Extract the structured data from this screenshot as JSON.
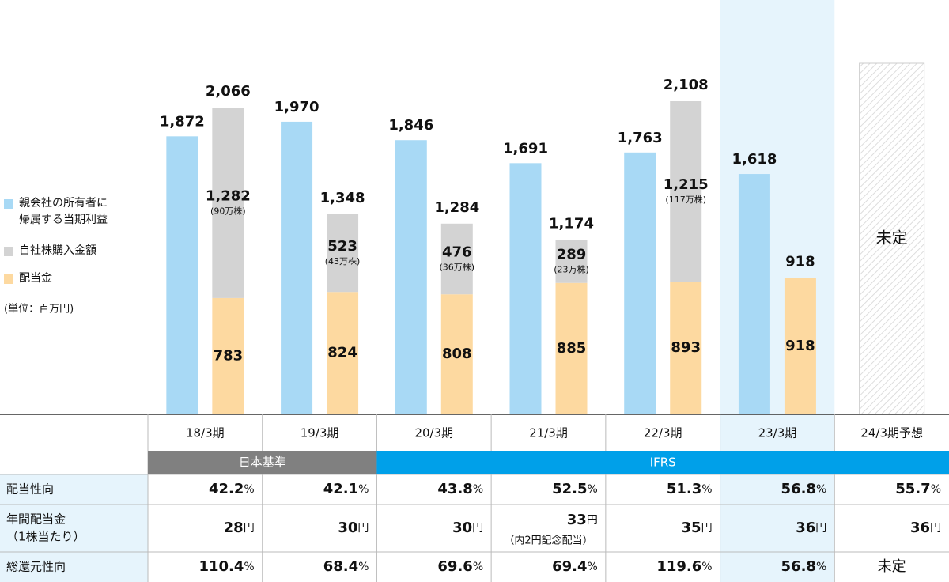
{
  "chart_data": {
    "type": "bar",
    "categories": [
      "18/3期",
      "19/3期",
      "20/3期",
      "21/3期",
      "22/3期",
      "23/3期",
      "24/3期予想"
    ],
    "series": [
      {
        "name": "親会社の所有者に帰属する当期利益",
        "color": "#a8d9f5",
        "values": [
          1872,
          1970,
          1846,
          1691,
          1763,
          1618,
          null
        ],
        "value_labels": [
          "1,872",
          "1,970",
          "1,846",
          "1,691",
          "1,763",
          "1,618",
          null
        ]
      },
      {
        "name": "自社株購入金額",
        "color": "#d3d3d3",
        "values": [
          1282,
          523,
          476,
          289,
          1215,
          null,
          null
        ],
        "value_labels": [
          "1,282",
          "523",
          "476",
          "289",
          "1,215",
          null,
          null
        ],
        "share_labels": [
          "(90万株)",
          "(43万株)",
          "(36万株)",
          "(23万株)",
          "(117万株)",
          null,
          null
        ]
      },
      {
        "name": "配当金",
        "color": "#fdd9a0",
        "values": [
          783,
          824,
          808,
          885,
          893,
          918,
          null
        ]
      }
    ],
    "total_labels": [
      "2,066",
      "1,348",
      "1,284",
      "1,174",
      "2,108",
      "918",
      null
    ],
    "pending_label": "未定",
    "highlight_column": 5,
    "unit_note": "(単位：百万円)"
  },
  "table": {
    "standards": [
      {
        "label": "日本基準",
        "span": 2,
        "color": "#808080"
      },
      {
        "label": "IFRS",
        "span": 5,
        "color": "#00a0e9"
      }
    ],
    "rows": [
      {
        "label_lines": [
          "配当性向"
        ],
        "values": [
          42.2,
          42.1,
          43.8,
          52.5,
          51.3,
          56.8,
          55.7
        ],
        "unit": "%"
      },
      {
        "label_lines": [
          "年間配当金",
          "（1株当たり）"
        ],
        "values": [
          28,
          30,
          30,
          33,
          35,
          36,
          36
        ],
        "unit": "円",
        "notes": [
          null,
          null,
          null,
          "（内2円記念配当）",
          null,
          null,
          null
        ]
      },
      {
        "label_lines": [
          "総還元性向"
        ],
        "values": [
          110.4,
          68.4,
          69.6,
          69.4,
          119.6,
          56.8,
          "未定"
        ],
        "unit": "%"
      }
    ]
  }
}
